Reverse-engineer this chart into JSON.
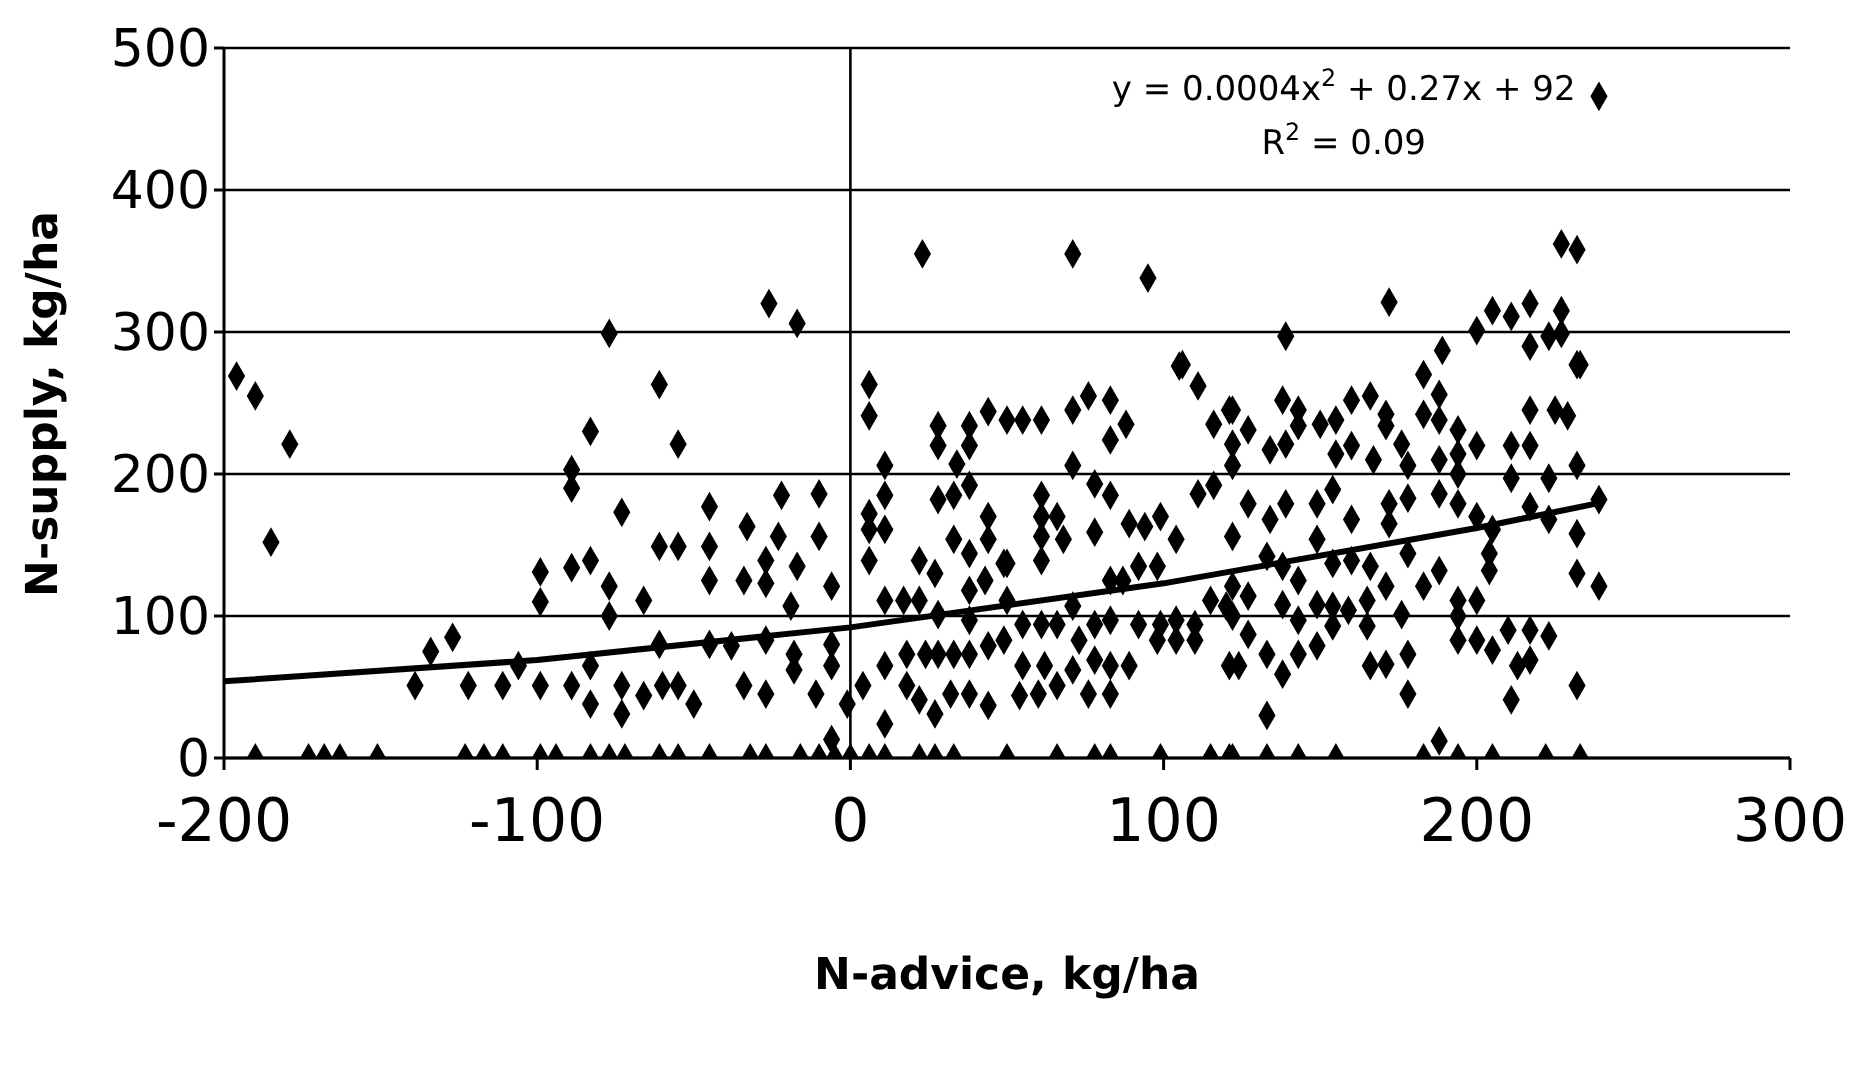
{
  "chart_data": {
    "type": "scatter",
    "xlabel": "N-advice, kg/ha",
    "ylabel": "N-supply, kg/ha",
    "annotations": [
      "y = 0.0004x$^{2}$ + 0.27x + 92",
      "R$^{2}$ = 0.09"
    ],
    "xlim": [
      -200,
      300
    ],
    "xticks": [
      -200,
      -100,
      0,
      100,
      200,
      300
    ],
    "ylim": [
      0,
      500
    ],
    "yticks": [
      0,
      100,
      200,
      300,
      400,
      500
    ],
    "grid": "y",
    "marker": "diamond",
    "ref_lines": [
      {
        "axis": "x",
        "value": 0,
        "color": "#000000"
      }
    ],
    "series": [
      {
        "type": "scatter",
        "color": "#000000",
        "x": [
          -190,
          -173,
          -168,
          -163,
          -151,
          -123,
          -117,
          -111,
          -99,
          -94,
          -83,
          -77,
          -72,
          -61,
          -55,
          -45,
          -32,
          -27,
          -16,
          -10,
          -5,
          0,
          6,
          11,
          22,
          27,
          33,
          50,
          66,
          78,
          83,
          99,
          115,
          121,
          122,
          133,
          143,
          155,
          183,
          194,
          205,
          222,
          233,
          188,
          -196,
          -190,
          -179,
          -185,
          -77,
          -61,
          -83,
          -55,
          -89,
          -89,
          -73,
          -99,
          -99,
          -89,
          -83,
          -77,
          -77,
          -134,
          -127,
          -139,
          -122,
          -111,
          -106,
          -99,
          -89,
          -83,
          -83,
          -73,
          -73,
          -66,
          -60,
          -55,
          -50,
          -61,
          -66,
          -61,
          -55,
          -45,
          -45,
          -33,
          -23,
          -10,
          -10,
          -22,
          -27,
          -17,
          -6,
          -45,
          -34,
          -27,
          -19,
          -45,
          -38,
          -27,
          -18,
          -18,
          -6,
          -6,
          -34,
          -27,
          -11,
          -1,
          -6,
          -26,
          -17,
          6,
          6,
          11,
          11,
          6,
          6,
          11,
          6,
          11,
          4,
          11,
          11,
          28,
          28,
          38,
          38,
          44,
          50,
          55,
          61,
          71,
          76,
          83,
          88,
          83,
          34,
          28,
          33,
          38,
          44,
          61,
          61,
          66,
          71,
          78,
          83,
          33,
          38,
          44,
          50,
          61,
          68,
          78,
          61,
          89,
          94,
          99,
          104,
          111,
          116,
          105,
          111,
          116,
          121,
          22,
          27,
          22,
          17,
          43,
          49,
          38,
          28,
          38,
          50,
          55,
          61,
          71,
          66,
          78,
          83,
          87,
          92,
          98,
          83,
          92,
          99,
          104,
          110,
          115,
          120,
          18,
          24,
          18,
          28,
          33,
          38,
          44,
          22,
          27,
          32,
          38,
          44,
          49,
          55,
          62,
          54,
          60,
          66,
          71,
          76,
          83,
          78,
          83,
          89,
          98,
          104,
          110,
          121,
          73,
          122,
          127,
          122,
          122,
          134,
          139,
          138,
          143,
          143,
          150,
          155,
          160,
          166,
          171,
          171,
          183,
          188,
          183,
          188,
          194,
          200,
          194,
          211,
          217,
          217,
          225,
          229,
          233,
          155,
          160,
          167,
          176,
          178,
          188,
          194,
          211,
          223,
          232,
          122,
          127,
          134,
          139,
          149,
          154,
          160,
          172,
          178,
          172,
          188,
          194,
          200,
          205,
          204,
          204,
          217,
          223,
          239,
          232,
          232,
          239,
          133,
          138,
          149,
          154,
          160,
          166,
          171,
          183,
          188,
          178,
          122,
          127,
          143,
          138,
          149,
          154,
          159,
          165,
          122,
          127,
          143,
          154,
          165,
          176,
          194,
          200,
          194,
          194,
          200,
          205,
          210,
          217,
          223,
          213,
          217,
          124,
          133,
          138,
          143,
          149,
          166,
          171,
          178,
          178,
          133,
          211,
          232,
          23,
          71,
          95,
          106,
          139,
          172,
          189,
          200,
          205,
          211,
          217,
          217,
          223,
          227,
          227,
          227,
          232,
          232,
          239
        ],
        "values": [
          0,
          0,
          0,
          0,
          0,
          0,
          0,
          0,
          0,
          0,
          0,
          0,
          0,
          0,
          0,
          0,
          0,
          0,
          0,
          0,
          0,
          0,
          0,
          0,
          0,
          0,
          0,
          0,
          0,
          0,
          0,
          0,
          0,
          0,
          0,
          0,
          0,
          0,
          0,
          0,
          0,
          0,
          0,
          12,
          269,
          255,
          221,
          152,
          299,
          263,
          230,
          221,
          203,
          190,
          173,
          131,
          110,
          134,
          139,
          121,
          100,
          75,
          85,
          51,
          51,
          51,
          65,
          51,
          51,
          65,
          38,
          51,
          31,
          44,
          51,
          51,
          38,
          80,
          111,
          149,
          149,
          149,
          177,
          163,
          156,
          156,
          186,
          185,
          139,
          135,
          121,
          125,
          125,
          123,
          107,
          80,
          79,
          83,
          73,
          62,
          80,
          65,
          51,
          45,
          45,
          38,
          13,
          320,
          306,
          263,
          241,
          206,
          185,
          172,
          161,
          161,
          139,
          111,
          51,
          65,
          24,
          234,
          220,
          234,
          220,
          244,
          238,
          238,
          238,
          245,
          255,
          252,
          235,
          224,
          207,
          182,
          185,
          192,
          170,
          185,
          170,
          170,
          206,
          193,
          185,
          154,
          144,
          154,
          137,
          156,
          154,
          159,
          139,
          165,
          163,
          170,
          154,
          186,
          192,
          276,
          262,
          235,
          245,
          139,
          130,
          111,
          111,
          125,
          137,
          118,
          101,
          97,
          111,
          94,
          94,
          107,
          94,
          94,
          125,
          125,
          135,
          135,
          97,
          94,
          94,
          97,
          94,
          111,
          107,
          73,
          73,
          51,
          73,
          73,
          73,
          79,
          41,
          31,
          45,
          45,
          37,
          83,
          65,
          65,
          44,
          45,
          51,
          62,
          45,
          45,
          69,
          65,
          65,
          83,
          83,
          83,
          65,
          83,
          245,
          231,
          221,
          206,
          217,
          221,
          252,
          245,
          234,
          235,
          238,
          252,
          255,
          242,
          234,
          270,
          256,
          242,
          238,
          231,
          220,
          214,
          220,
          220,
          245,
          245,
          241,
          277,
          214,
          220,
          210,
          221,
          206,
          210,
          200,
          197,
          197,
          206,
          156,
          179,
          168,
          179,
          179,
          189,
          168,
          179,
          183,
          165,
          186,
          179,
          170,
          161,
          144,
          132,
          177,
          168,
          182,
          158,
          130,
          121,
          142,
          135,
          154,
          137,
          139,
          135,
          121,
          121,
          132,
          144,
          121,
          114,
          125,
          108,
          108,
          107,
          104,
          111,
          100,
          87,
          97,
          93,
          93,
          101,
          111,
          111,
          100,
          83,
          83,
          76,
          90,
          90,
          86,
          65,
          69,
          65,
          73,
          59,
          73,
          79,
          65,
          66,
          73,
          45,
          30,
          41,
          51,
          355,
          355,
          338,
          277,
          297,
          321,
          287,
          301,
          315,
          311,
          320,
          290,
          297,
          315,
          299,
          362,
          358,
          277,
          466
        ]
      },
      {
        "type": "line",
        "color": "#000000",
        "marker": "none",
        "x": [
          -200,
          -100,
          0,
          100,
          200,
          240
        ],
        "values": [
          54,
          69,
          92,
          123,
          162,
          180
        ]
      }
    ]
  }
}
